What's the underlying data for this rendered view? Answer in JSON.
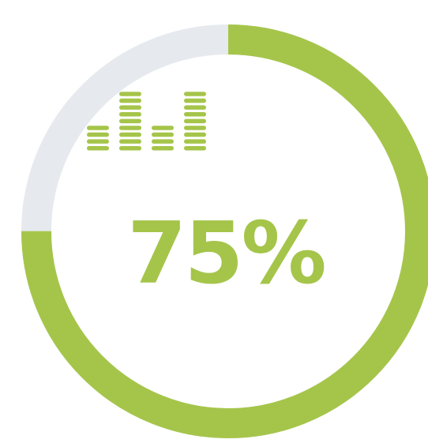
{
  "progress": {
    "value_percent": 75,
    "label": "75%"
  },
  "equalizer": {
    "icon": "equalizer-icon",
    "bar_levels": [
      4,
      9,
      4,
      9
    ]
  },
  "colors": {
    "accent": "#A5C54A",
    "track": "#E6E9EE",
    "background": "#FFFFFF"
  }
}
